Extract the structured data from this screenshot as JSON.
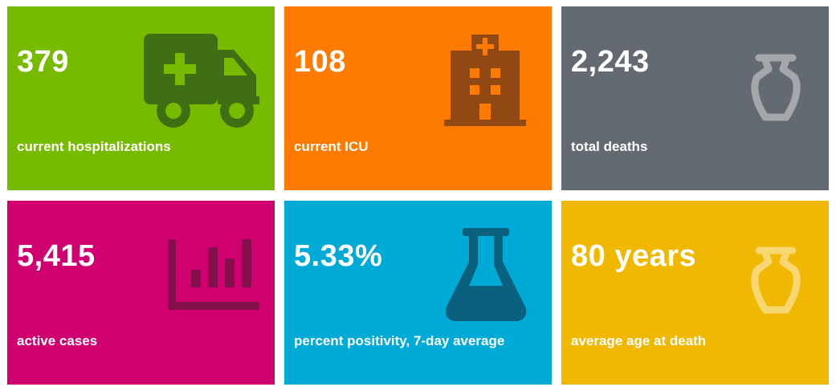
{
  "tiles": [
    {
      "value": "379",
      "label": "current hospitalizations",
      "icon": "ambulance-icon",
      "bg": "#77bb00",
      "icon_color": "#3f6e13"
    },
    {
      "value": "108",
      "label": "current ICU",
      "icon": "hospital-building-icon",
      "bg": "#ff7b00",
      "icon_color": "#914812"
    },
    {
      "value": "2,243",
      "label": "total deaths",
      "icon": "urn-icon",
      "bg": "#636a71",
      "icon_color": "#a5a8aa"
    },
    {
      "value": "5,415",
      "label": "active cases",
      "icon": "bar-chart-icon",
      "bg": "#d10070",
      "icon_color": "#83104b"
    },
    {
      "value": "5.33%",
      "label": "percent positivity, 7-day average",
      "icon": "flask-icon",
      "bg": "#00aad7",
      "icon_color": "#09617e"
    },
    {
      "value": "80 years",
      "label": "average age at death",
      "icon": "urn-icon",
      "bg": "#f0b800",
      "icon_color": "#f8d772"
    }
  ]
}
